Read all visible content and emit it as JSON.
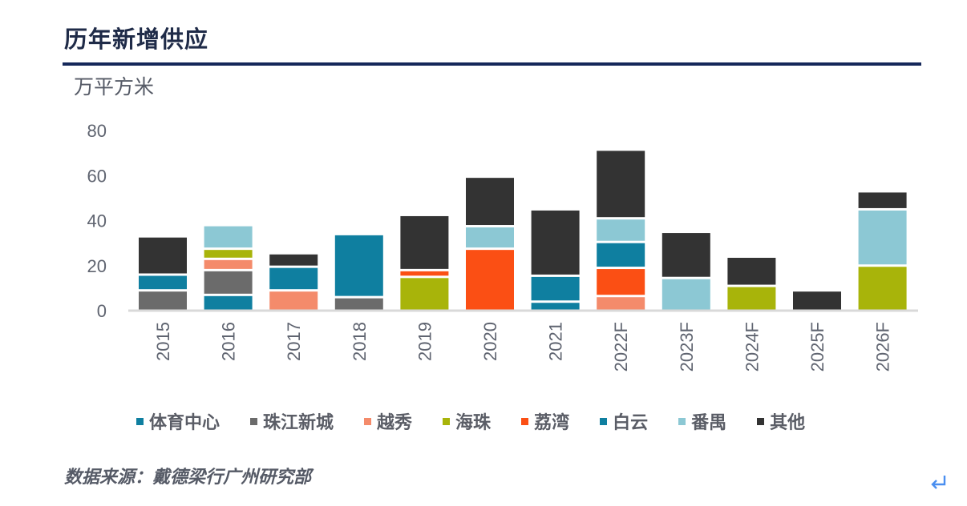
{
  "header": {
    "title": "历年新增供应",
    "unit": "万平方米"
  },
  "footer": {
    "source": "数据来源：戴德梁行广州研究部",
    "return_icon": "return-arrow-icon"
  },
  "chart_data": {
    "type": "bar",
    "stacked": true,
    "title": "历年新增供应",
    "ylabel": "万平方米",
    "xlabel": "",
    "ylim": [
      0,
      80
    ],
    "yticks": [
      0,
      20,
      40,
      60,
      80
    ],
    "grid": false,
    "legend_position": "bottom",
    "categories": [
      "2015",
      "2016",
      "2017",
      "2018",
      "2019",
      "2020",
      "2021",
      "2022F",
      "2023F",
      "2024F",
      "2025F",
      "2026F"
    ],
    "series": [
      {
        "name": "体育中心",
        "color": "#0f7fa0",
        "values": [
          0,
          7,
          0,
          0,
          0,
          0,
          4,
          0,
          0,
          0,
          0,
          0
        ]
      },
      {
        "name": "珠江新城",
        "color": "#6b6b6b",
        "values": [
          9,
          11,
          0,
          6,
          0,
          0,
          0,
          0,
          0,
          0,
          0,
          0
        ]
      },
      {
        "name": "越秀",
        "color": "#f48b6b",
        "values": [
          0,
          5,
          9,
          0,
          0,
          0,
          0,
          6.5,
          0,
          0,
          0,
          0
        ]
      },
      {
        "name": "海珠",
        "color": "#a8b40a",
        "values": [
          0,
          4.5,
          0,
          0,
          15,
          0,
          0,
          0,
          0,
          11,
          0,
          20
        ]
      },
      {
        "name": "荔湾",
        "color": "#fb4f14",
        "values": [
          0,
          0,
          0,
          0,
          3,
          27.5,
          0,
          12.5,
          0,
          0,
          0,
          0
        ]
      },
      {
        "name": "白云",
        "color": "#0f7fa0",
        "values": [
          7,
          0,
          10.5,
          28,
          0,
          0,
          11.5,
          11.5,
          0,
          0,
          0,
          0
        ]
      },
      {
        "name": "番禺",
        "color": "#8cc8d4",
        "values": [
          0,
          10.5,
          0,
          0,
          0,
          10,
          0,
          10.5,
          14.5,
          0,
          0,
          25
        ]
      },
      {
        "name": "其他",
        "color": "#333333",
        "values": [
          17,
          0,
          6,
          0,
          24.5,
          22,
          29.5,
          30.5,
          20.5,
          13,
          9,
          8
        ]
      }
    ]
  }
}
